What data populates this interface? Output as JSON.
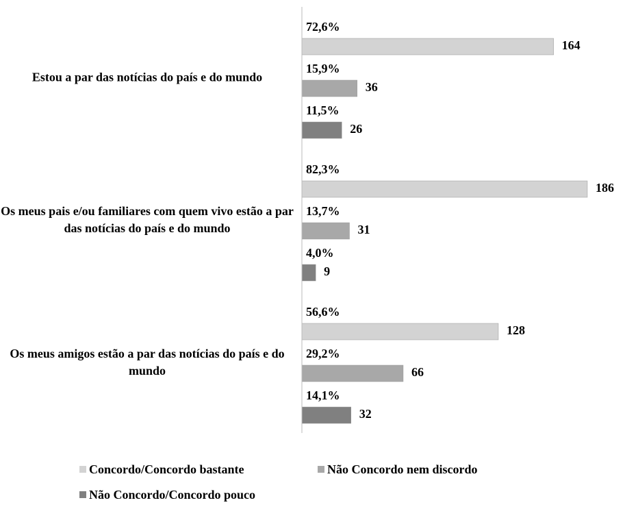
{
  "chart_data": {
    "type": "bar",
    "orientation": "horizontal",
    "categories": [
      "Estou a par das notícias do país e do mundo",
      "Os meus pais e/ou familiares com quem vivo estão a par das notícias do país e do mundo",
      "Os meus amigos estão a par das notícias do país e do mundo"
    ],
    "xlim": [
      0,
      186
    ],
    "series": [
      {
        "name": "Concordo/Concordo bastante",
        "color": "#d3d3d3",
        "values": [
          164,
          186,
          128
        ],
        "percentages": [
          72.6,
          82.3,
          56.6
        ],
        "percentage_labels": [
          "72,6%",
          "82,3%",
          "56,6%"
        ]
      },
      {
        "name": "Não Concordo nem discordo",
        "color": "#a8a8a8",
        "values": [
          36,
          31,
          66
        ],
        "percentages": [
          15.9,
          13.7,
          29.2
        ],
        "percentage_labels": [
          "15,9%",
          "13,7%",
          "29,2%"
        ]
      },
      {
        "name": "Não Concordo/Concordo pouco",
        "color": "#808080",
        "values": [
          26,
          9,
          32
        ],
        "percentages": [
          11.5,
          4.0,
          14.1
        ],
        "percentage_labels": [
          "11,5%",
          "4,0%",
          "14,1%"
        ]
      }
    ],
    "legend": "bottom"
  }
}
